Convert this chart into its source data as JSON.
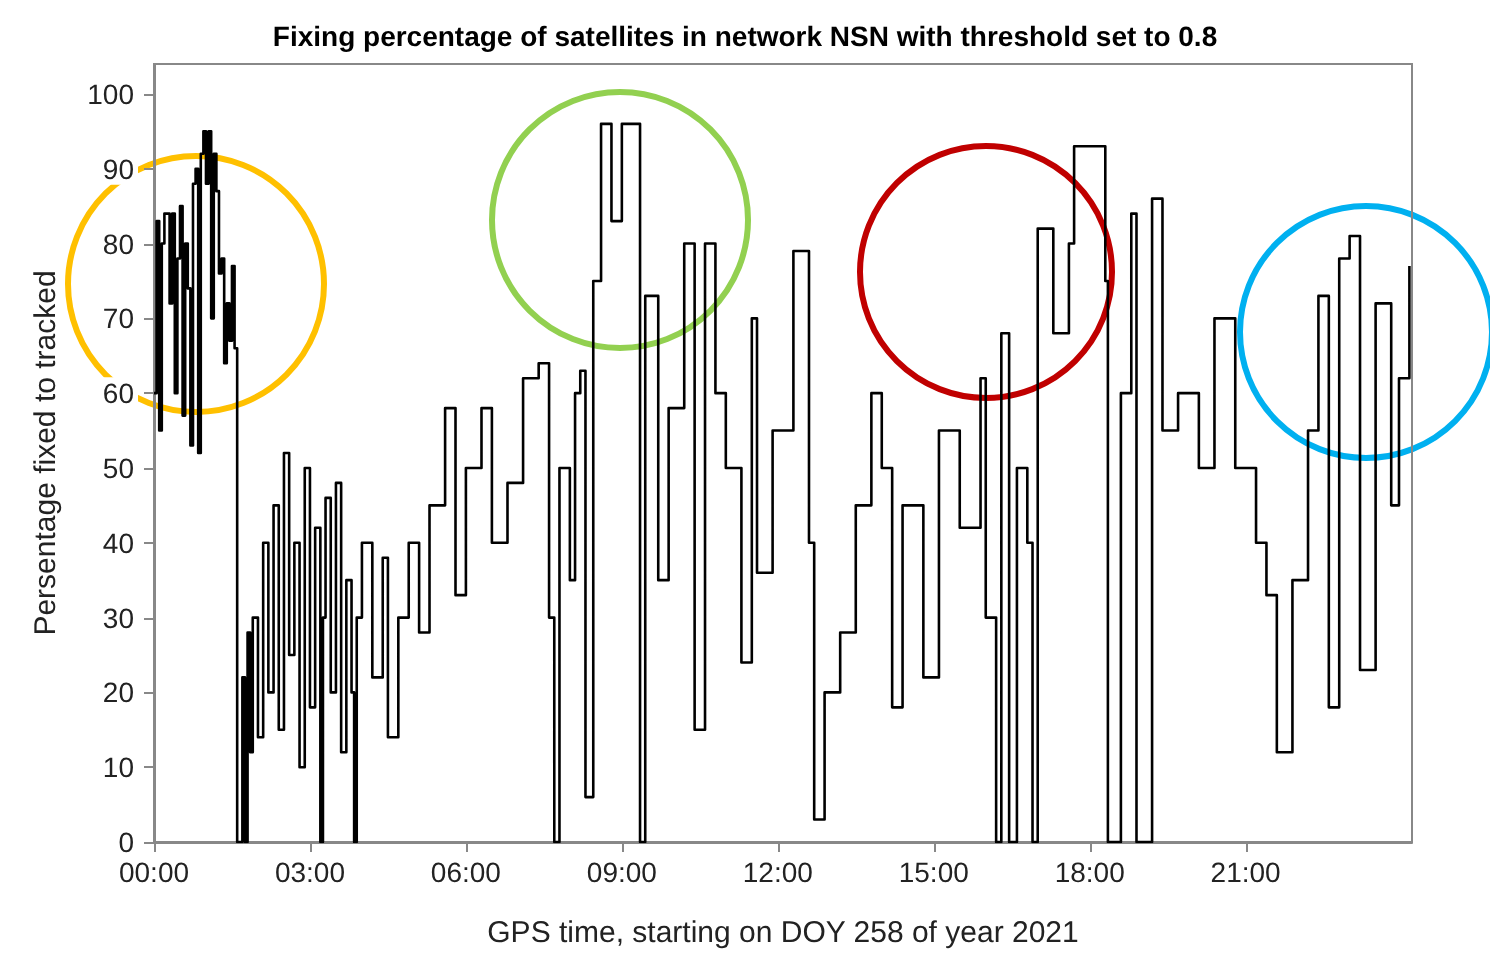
{
  "chart_data": {
    "type": "step",
    "title": "Fixing percentage of satellites in network NSN with threshold set to 0.8",
    "xlabel": "GPS time, starting on DOY 258 of year 2021",
    "ylabel": "Persentage fixed to tracked",
    "x": [
      0,
      0.05,
      0.1,
      0.15,
      0.2,
      0.3,
      0.35,
      0.4,
      0.45,
      0.5,
      0.55,
      0.6,
      0.65,
      0.7,
      0.75,
      0.8,
      0.85,
      0.9,
      0.95,
      1.0,
      1.05,
      1.1,
      1.15,
      1.2,
      1.25,
      1.3,
      1.35,
      1.4,
      1.45,
      1.5,
      1.55,
      1.6,
      1.7,
      1.75,
      1.8,
      1.85,
      1.9,
      2.0,
      2.1,
      2.2,
      2.3,
      2.4,
      2.5,
      2.6,
      2.7,
      2.8,
      2.9,
      3.0,
      3.1,
      3.2,
      3.25,
      3.3,
      3.4,
      3.5,
      3.6,
      3.7,
      3.8,
      3.85,
      3.9,
      4.0,
      4.2,
      4.4,
      4.5,
      4.7,
      4.9,
      5.1,
      5.3,
      5.6,
      5.8,
      6.0,
      6.3,
      6.5,
      6.8,
      7.1,
      7.4,
      7.6,
      7.7,
      7.8,
      8.0,
      8.1,
      8.2,
      8.3,
      8.45,
      8.6,
      8.8,
      9.0,
      9.2,
      9.35,
      9.45,
      9.7,
      9.9,
      10.2,
      10.4,
      10.6,
      10.8,
      11.0,
      11.3,
      11.5,
      11.6,
      11.9,
      12.3,
      12.6,
      12.7,
      12.9,
      13.2,
      13.5,
      13.8,
      14.0,
      14.2,
      14.4,
      14.8,
      15.1,
      15.5,
      15.9,
      16.0,
      16.2,
      16.3,
      16.45,
      16.6,
      16.8,
      16.9,
      17.0,
      17.3,
      17.6,
      17.7,
      18.2,
      18.3,
      18.35,
      18.6,
      18.8,
      18.9,
      19.2,
      19.4,
      19.7,
      20.1,
      20.4,
      20.8,
      21.2,
      21.4,
      21.6,
      21.9,
      22.2,
      22.4,
      22.6,
      22.8,
      23.0,
      23.2,
      23.5,
      23.8,
      23.95,
      24.15
    ],
    "values": [
      60,
      83,
      55,
      80,
      84,
      72,
      84,
      60,
      78,
      85,
      57,
      80,
      74,
      53,
      88,
      90,
      52,
      92,
      95,
      88,
      95,
      70,
      92,
      87,
      76,
      78,
      64,
      72,
      67,
      77,
      66,
      0,
      22,
      0,
      28,
      12,
      30,
      14,
      40,
      20,
      45,
      15,
      52,
      25,
      40,
      10,
      50,
      18,
      42,
      0,
      30,
      46,
      20,
      48,
      12,
      35,
      20,
      0,
      30,
      40,
      22,
      38,
      14,
      30,
      40,
      28,
      45,
      58,
      33,
      50,
      58,
      40,
      48,
      62,
      64,
      30,
      0,
      50,
      35,
      60,
      63,
      6,
      75,
      96,
      83,
      96,
      96,
      0,
      73,
      35,
      58,
      80,
      15,
      80,
      60,
      50,
      24,
      70,
      36,
      55,
      79,
      40,
      3,
      20,
      28,
      45,
      60,
      50,
      18,
      45,
      22,
      55,
      42,
      62,
      30,
      0,
      68,
      0,
      50,
      40,
      0,
      82,
      68,
      80,
      93,
      93,
      75,
      0,
      60,
      84,
      0,
      86,
      55,
      60,
      50,
      70,
      50,
      40,
      33,
      12,
      35,
      55,
      73,
      18,
      78,
      81,
      23,
      72,
      45,
      62,
      77
    ],
    "color": "#000000",
    "xlim": [
      0,
      24.2
    ],
    "ylim": [
      0,
      104
    ],
    "xticks": [
      {
        "value": 0,
        "label": "00:00"
      },
      {
        "value": 3,
        "label": "03:00"
      },
      {
        "value": 6,
        "label": "06:00"
      },
      {
        "value": 9,
        "label": "09:00"
      },
      {
        "value": 12,
        "label": "12:00"
      },
      {
        "value": 15,
        "label": "15:00"
      },
      {
        "value": 18,
        "label": "18:00"
      },
      {
        "value": 21,
        "label": "21:00"
      }
    ],
    "yticks": [
      0,
      10,
      20,
      30,
      40,
      50,
      60,
      70,
      80,
      90,
      100
    ],
    "grid": false,
    "marker": "none",
    "line_style": "solid"
  }
}
